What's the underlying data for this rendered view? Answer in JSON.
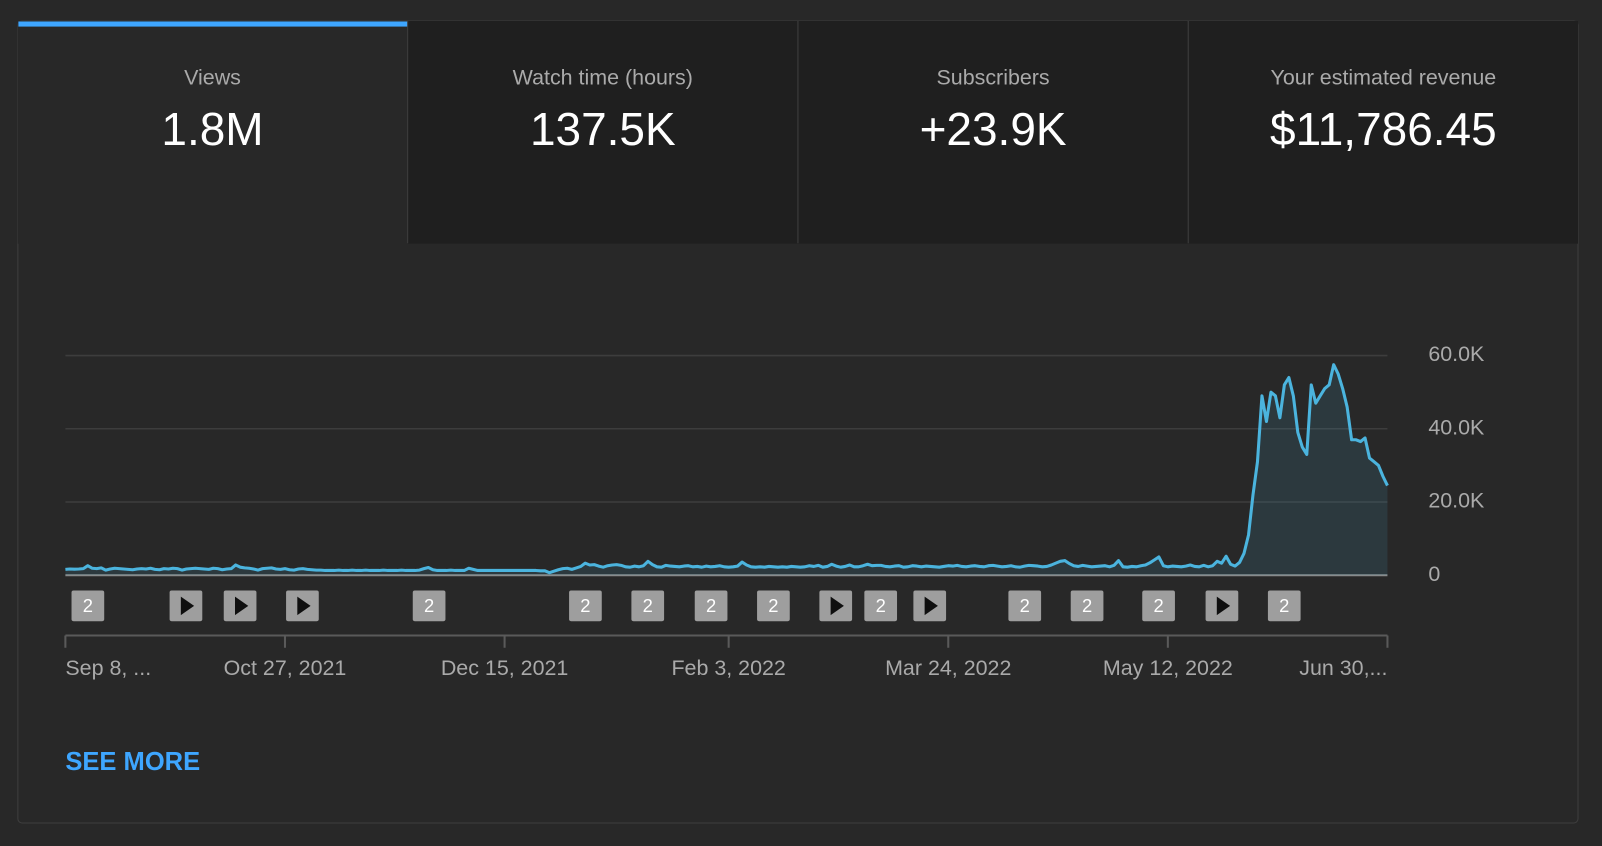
{
  "tabs": [
    {
      "label": "Views",
      "value": "1.8M"
    },
    {
      "label": "Watch time (hours)",
      "value": "137.5K"
    },
    {
      "label": "Subscribers",
      "value": "+23.9K"
    },
    {
      "label": "Your estimated revenue",
      "value": "$11,786.45"
    }
  ],
  "selected_tab": 0,
  "chart_data": {
    "type": "line",
    "categories": [
      "Sep 8, ...",
      null,
      null,
      null,
      null,
      null,
      null,
      null,
      null,
      null,
      null,
      null,
      null,
      null,
      null,
      null,
      null,
      null,
      null,
      null,
      null,
      null,
      null,
      null,
      null,
      null,
      null,
      null,
      null,
      null,
      null,
      null,
      null,
      null,
      null,
      null,
      null,
      null,
      null,
      null,
      null,
      null,
      null,
      null,
      null,
      null,
      null,
      null,
      null,
      "Oct 27, 2021",
      null,
      null,
      null,
      null,
      null,
      null,
      null,
      null,
      null,
      null,
      null,
      null,
      null,
      null,
      null,
      null,
      null,
      null,
      null,
      null,
      null,
      null,
      null,
      null,
      null,
      null,
      null,
      null,
      null,
      null,
      null,
      null,
      null,
      null,
      null,
      null,
      null,
      null,
      null,
      null,
      null,
      null,
      null,
      null,
      null,
      null,
      null,
      null,
      "Dec 15, 2021",
      null,
      null,
      null,
      null,
      null,
      null,
      null,
      null,
      null,
      null,
      null,
      null,
      null,
      null,
      null,
      null,
      null,
      null,
      null,
      null,
      null,
      null,
      null,
      null,
      null,
      null,
      null,
      null,
      null,
      null,
      null,
      null,
      null,
      null,
      null,
      null,
      null,
      null,
      null,
      null,
      null,
      null,
      null,
      null,
      null,
      null,
      null,
      null,
      null,
      "Feb 3, 2022",
      null,
      null,
      null,
      null,
      null,
      null,
      null,
      null,
      null,
      null,
      null,
      null,
      null,
      null,
      null,
      null,
      null,
      null,
      null,
      null,
      null,
      null,
      null,
      null,
      null,
      null,
      null,
      null,
      null,
      null,
      null,
      null,
      null,
      null,
      null,
      null,
      null,
      null,
      null,
      null,
      null,
      null,
      null,
      null,
      null,
      null,
      null,
      null,
      "Mar 24, 2022",
      null,
      null,
      null,
      null,
      null,
      null,
      null,
      null,
      null,
      null,
      null,
      null,
      null,
      null,
      null,
      null,
      null,
      null,
      null,
      null,
      null,
      null,
      null,
      null,
      null,
      null,
      null,
      null,
      null,
      null,
      null,
      null,
      null,
      null,
      null,
      null,
      null,
      null,
      null,
      null,
      null,
      null,
      null,
      null,
      null,
      null,
      null,
      null,
      "May 12, 2022",
      null,
      null,
      null,
      null,
      null,
      null,
      null,
      null,
      null,
      null,
      null,
      null,
      null,
      null,
      null,
      null,
      null,
      null,
      null,
      null,
      null,
      null,
      null,
      null,
      null,
      null,
      null,
      null,
      null,
      null,
      null,
      null,
      null,
      null,
      null,
      null,
      null,
      null,
      null,
      null,
      null,
      null,
      null,
      null,
      null,
      null,
      null,
      null,
      "Jun 30,..."
    ],
    "series": [
      {
        "name": "Views",
        "color": "#4bb4de",
        "values": [
          1600,
          1700,
          1650,
          1700,
          1800,
          2600,
          1900,
          1800,
          2000,
          1400,
          1700,
          1900,
          1800,
          1700,
          1600,
          1500,
          1700,
          1800,
          1700,
          1900,
          1600,
          1500,
          1800,
          1700,
          1900,
          1800,
          1400,
          1700,
          1800,
          1900,
          1800,
          1700,
          1600,
          1900,
          1800,
          1500,
          1700,
          1800,
          2800,
          2200,
          2000,
          1900,
          1700,
          1400,
          1800,
          1900,
          2000,
          1700,
          1600,
          1800,
          1500,
          1400,
          1700,
          1800,
          1600,
          1500,
          1400,
          1400,
          1300,
          1300,
          1300,
          1400,
          1300,
          1300,
          1400,
          1300,
          1300,
          1400,
          1300,
          1300,
          1300,
          1400,
          1300,
          1300,
          1300,
          1400,
          1300,
          1300,
          1300,
          1400,
          1800,
          2100,
          1500,
          1300,
          1300,
          1300,
          1400,
          1300,
          1300,
          1300,
          1900,
          1600,
          1300,
          1300,
          1300,
          1300,
          1300,
          1300,
          1300,
          1300,
          1300,
          1300,
          1300,
          1300,
          1300,
          1300,
          1200,
          1200,
          700,
          1100,
          1500,
          1800,
          1900,
          1600,
          2000,
          2400,
          3300,
          2800,
          2900,
          2500,
          2200,
          2600,
          2800,
          2900,
          2700,
          2300,
          2200,
          2500,
          2300,
          2600,
          3800,
          2900,
          2300,
          2200,
          2700,
          2500,
          2400,
          2300,
          2500,
          2600,
          2300,
          2400,
          2200,
          2500,
          2300,
          2400,
          2600,
          2300,
          2200,
          2300,
          2500,
          3600,
          2800,
          2300,
          2200,
          2300,
          2200,
          2400,
          2300,
          2200,
          2300,
          2200,
          2400,
          2300,
          2200,
          2300,
          2600,
          2400,
          2700,
          2200,
          2400,
          3000,
          2500,
          2200,
          2400,
          2800,
          2300,
          2300,
          2600,
          3000,
          2600,
          2700,
          2700,
          2400,
          2300,
          2500,
          2600,
          2200,
          2300,
          2600,
          2500,
          2300,
          2500,
          2400,
          2300,
          2200,
          2400,
          2600,
          2500,
          2700,
          2400,
          2300,
          2500,
          2600,
          2400,
          2300,
          2600,
          2700,
          2500,
          2300,
          2400,
          2600,
          2300,
          2200,
          2500,
          2700,
          2600,
          2500,
          2300,
          2400,
          2800,
          3300,
          3800,
          4000,
          3200,
          2600,
          2400,
          2700,
          2500,
          2300,
          2400,
          2500,
          2600,
          2300,
          2700,
          4000,
          2300,
          2200,
          2400,
          2300,
          2600,
          2800,
          3400,
          4200,
          5000,
          2600,
          2300,
          2500,
          2400,
          2300,
          2500,
          2800,
          2400,
          2300,
          2700,
          2300,
          2600,
          3800,
          3300,
          5200,
          3000,
          2500,
          3500,
          6000,
          11000,
          22000,
          31000,
          49000,
          42000,
          50000,
          49000,
          43000,
          52000,
          54000,
          49000,
          39000,
          35000,
          33000,
          52000,
          47000,
          49000,
          51000,
          52000,
          57500,
          55000,
          51000,
          46000,
          37000,
          37000,
          36500,
          37500,
          32000,
          31000,
          30000,
          27000,
          24500
        ]
      }
    ],
    "ylim": [
      0,
      60000
    ],
    "yticks": [
      0,
      {
        "value": 20000,
        "label": "20.0K"
      },
      {
        "value": 40000,
        "label": "40.0K"
      },
      {
        "value": 60000,
        "label": "60.0K"
      }
    ],
    "grid": true
  },
  "markers": [
    {
      "label": "2"
    },
    {
      "icon": "play"
    },
    {
      "icon": "play"
    },
    {
      "icon": "play"
    },
    {
      "label": "2"
    },
    {
      "label": "2"
    },
    {
      "label": "2"
    },
    {
      "label": "2"
    },
    {
      "label": "2"
    },
    {
      "icon": "play"
    },
    {
      "label": "2"
    },
    {
      "icon": "play"
    },
    {
      "label": "2"
    },
    {
      "label": "2"
    },
    {
      "label": "2"
    },
    {
      "icon": "play"
    },
    {
      "label": "2"
    }
  ],
  "see_more": "SEE MORE"
}
